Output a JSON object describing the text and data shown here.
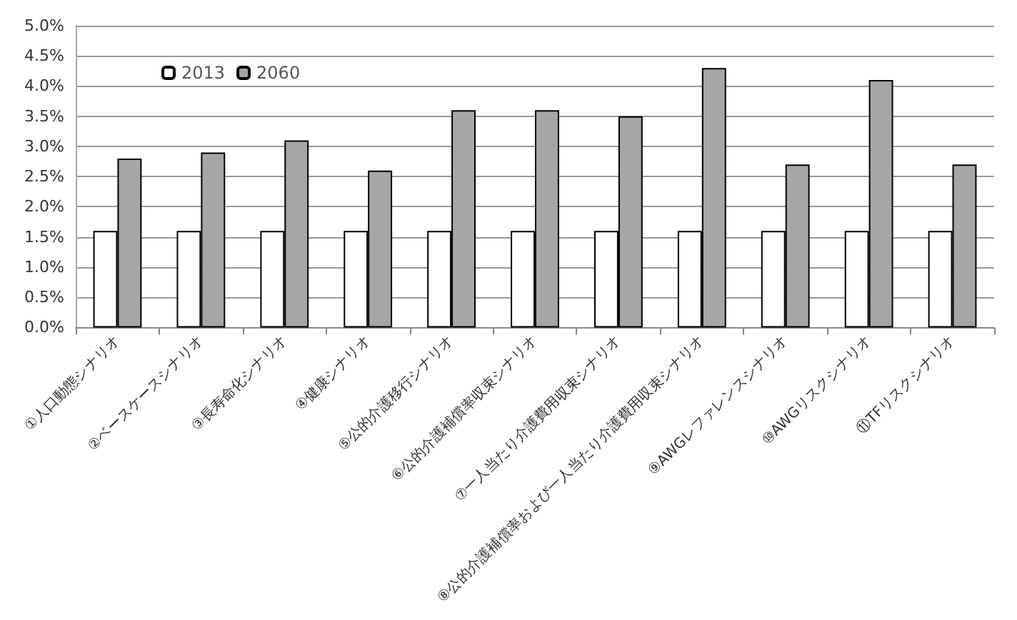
{
  "chart_data": {
    "type": "bar",
    "categories": [
      "①人口動態シナリオ",
      "②ベースケースシナリオ",
      "③長寿命化シナリオ",
      "④健康シナリオ",
      "⑤公的介護移行シナリオ",
      "⑥公的介護補償率収束シナリオ",
      "⑦一人当たり介護費用収束シナリオ",
      "⑧公的介護補償率および一人当たり介護費用収束シナリオ",
      "⑨AWGレファレンスシナリオ",
      "⑩AWGリスクシナリオ",
      "⑪TFリスクシナリオ"
    ],
    "series": [
      {
        "name": "2013",
        "color": "#ffffff",
        "values": [
          1.6,
          1.6,
          1.6,
          1.6,
          1.6,
          1.6,
          1.6,
          1.6,
          1.6,
          1.6,
          1.6
        ]
      },
      {
        "name": "2060",
        "color": "#a6a6a6",
        "values": [
          2.8,
          2.9,
          3.1,
          2.6,
          3.6,
          3.6,
          3.5,
          4.3,
          2.7,
          4.1,
          2.7
        ]
      }
    ],
    "ylim": [
      0,
      5
    ],
    "yticks": [
      {
        "value": 0,
        "label": "0.0%"
      },
      {
        "value": 0.5,
        "label": "0.5%"
      },
      {
        "value": 1,
        "label": "1.0%"
      },
      {
        "value": 1.5,
        "label": "1.5%"
      },
      {
        "value": 2,
        "label": "2.0%"
      },
      {
        "value": 2.5,
        "label": "2.5%"
      },
      {
        "value": 3,
        "label": "3.0%"
      },
      {
        "value": 3.5,
        "label": "3.5%"
      },
      {
        "value": 4,
        "label": "4.0%"
      },
      {
        "value": 4.5,
        "label": "4.5%"
      },
      {
        "value": 5,
        "label": "5.0%"
      }
    ],
    "grid": "y",
    "legend": "top left"
  }
}
